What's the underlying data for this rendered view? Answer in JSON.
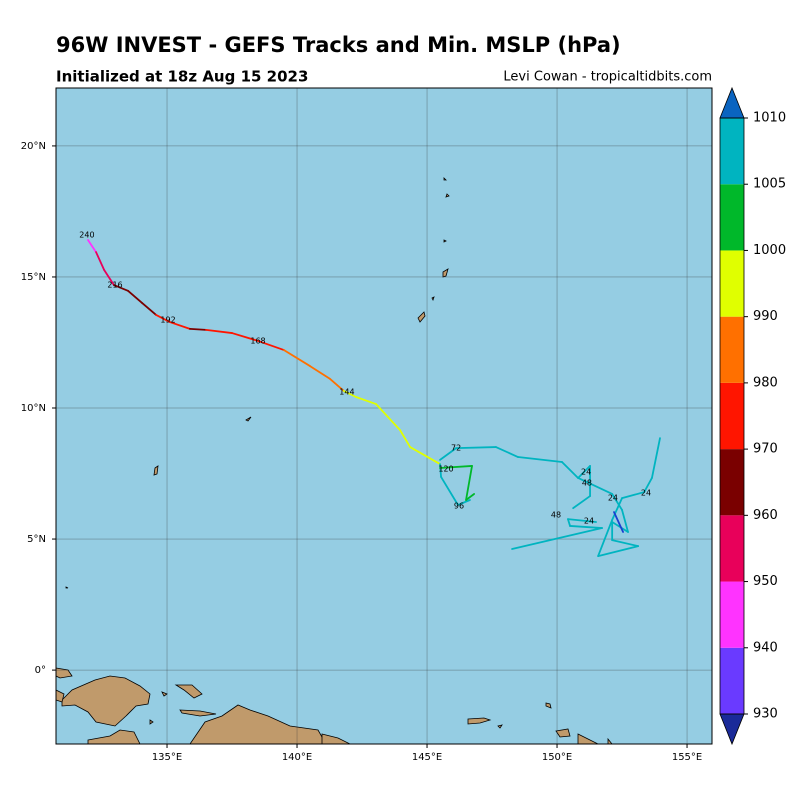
{
  "chart_data": {
    "type": "track-map",
    "title": "96W INVEST - GEFS Tracks and Min. MSLP (hPa)",
    "subtitle": "Initialized at 18z Aug 15 2023",
    "credit": "Levi Cowan - tropicaltidbits.com",
    "xlim": [
      130.73,
      155.96
    ],
    "ylim": [
      -2.82,
      22.21
    ],
    "xticks": [
      {
        "value": 135,
        "label": "135°E"
      },
      {
        "value": 140,
        "label": "140°E"
      },
      {
        "value": 145,
        "label": "145°E"
      },
      {
        "value": 150,
        "label": "150°E"
      },
      {
        "value": 155,
        "label": "155°E"
      }
    ],
    "yticks": [
      {
        "value": 0,
        "label": "0°"
      },
      {
        "value": 5,
        "label": "5°N"
      },
      {
        "value": 10,
        "label": "10°N"
      },
      {
        "value": 15,
        "label": "15°N"
      },
      {
        "value": 20,
        "label": "20°N"
      }
    ],
    "grid": true,
    "tracks": [
      {
        "lon": [
          131.96,
          132.27,
          132.58,
          132.96,
          133.5,
          134.04,
          134.58,
          135.11,
          135.88,
          136.5,
          137.5,
          138.5,
          139.5,
          140.5,
          141.27,
          141.8,
          142.27,
          143.04,
          143.96,
          144.35,
          145.5
        ],
        "lat": [
          16.41,
          15.95,
          15.27,
          14.69,
          14.47,
          14.01,
          13.55,
          13.28,
          13.02,
          12.98,
          12.86,
          12.56,
          12.21,
          11.6,
          11.11,
          10.65,
          10.42,
          10.15,
          9.16,
          8.51,
          7.86
        ],
        "colors": [
          "#ff33ff",
          "#e8005a",
          "#e8005a",
          "#7a0000",
          "#7a0000",
          "#7a0000",
          "#ff1500",
          "#ff1500",
          "#7a0000",
          "#ff1500",
          "#ff1500",
          "#ff1500",
          "#ff7000",
          "#ff7000",
          "#ff7000",
          "#e0ff00",
          "#e0ff00",
          "#e0ff00",
          "#e0ff00",
          "#e0ff00"
        ]
      },
      {
        "lon": [
          145.5,
          146.12,
          147.65,
          148.5,
          150.19,
          150.81,
          152.12,
          152.5,
          152.73,
          152.12,
          152.12,
          153.12,
          151.58,
          152.12,
          152.5,
          153.35,
          153.65,
          153.96
        ],
        "lat": [
          8.02,
          8.47,
          8.51,
          8.13,
          7.94,
          7.33,
          6.72,
          6.11,
          5.27,
          5.65,
          4.96,
          4.73,
          4.35,
          5.73,
          6.56,
          6.79,
          7.33,
          8.85
        ],
        "colors": [
          "#00b4c0",
          "#00b4c0",
          "#00b4c0",
          "#00b4c0",
          "#00b4c0",
          "#00b4c0",
          "#00b4c0",
          "#00b4c0",
          "#00b4c0",
          "#00b4c0",
          "#00b4c0",
          "#00b4c0",
          "#00b4c0",
          "#00b4c0",
          "#00b4c0",
          "#00b4c0",
          "#00b4c0"
        ]
      },
      {
        "lon": [
          145.5,
          145.54,
          146.19,
          146.65
        ],
        "lat": [
          7.86,
          7.37,
          6.3,
          6.49
        ],
        "colors": [
          "#00b4c0",
          "#00b4c0",
          "#00b4c0"
        ]
      },
      {
        "lon": [
          150.81,
          151.27,
          151.27,
          150.62
        ],
        "lat": [
          7.33,
          7.79,
          6.64,
          6.18
        ],
        "colors": [
          "#00b4c0",
          "#00b4c0",
          "#00b4c0"
        ]
      },
      {
        "lon": [
          148.27,
          151.73,
          150.5,
          150.42,
          151.5
        ],
        "lat": [
          4.62,
          5.42,
          5.5,
          5.76,
          5.65
        ],
        "colors": [
          "#00b4c0",
          "#00b4c0",
          "#00b4c0",
          "#00b4c0"
        ]
      },
      {
        "lon": [
          145.5,
          146.73,
          146.5,
          146.81
        ],
        "lat": [
          7.71,
          7.79,
          6.49,
          6.72
        ],
        "colors": [
          "#00b82a",
          "#00b82a",
          "#00b82a"
        ]
      },
      {
        "lon": [
          152.19,
          152.54
        ],
        "lat": [
          6.03,
          5.27
        ],
        "colors": [
          "#1a40d0"
        ]
      }
    ],
    "hour_labels": [
      {
        "text": "240",
        "lon": 131.92,
        "lat": 16.6
      },
      {
        "text": "216",
        "lon": 133.0,
        "lat": 14.69
      },
      {
        "text": "192",
        "lon": 135.04,
        "lat": 13.36
      },
      {
        "text": "168",
        "lon": 138.5,
        "lat": 12.56
      },
      {
        "text": "144",
        "lon": 141.92,
        "lat": 10.61
      },
      {
        "text": "120",
        "lon": 145.73,
        "lat": 7.67
      },
      {
        "text": "96",
        "lon": 146.23,
        "lat": 6.26
      },
      {
        "text": "72",
        "lon": 146.12,
        "lat": 8.47
      },
      {
        "text": "48",
        "lon": 151.15,
        "lat": 7.14
      },
      {
        "text": "48",
        "lon": 149.96,
        "lat": 5.92
      },
      {
        "text": "24",
        "lon": 151.12,
        "lat": 7.56
      },
      {
        "text": "24",
        "lon": 152.15,
        "lat": 6.56
      },
      {
        "text": "24",
        "lon": 153.42,
        "lat": 6.76
      },
      {
        "text": "24",
        "lon": 151.23,
        "lat": 5.69
      }
    ],
    "colorbar": {
      "levels": [
        930,
        940,
        950,
        960,
        970,
        980,
        990,
        1000,
        1005,
        1010
      ],
      "colors": [
        "#6a3aff",
        "#ff33ff",
        "#e8005a",
        "#7a0000",
        "#ff1500",
        "#ff7000",
        "#e0ff00",
        "#00b82a",
        "#00b4c0"
      ],
      "extend_colors": [
        "#1a2a99",
        "#0a64c0"
      ]
    }
  }
}
